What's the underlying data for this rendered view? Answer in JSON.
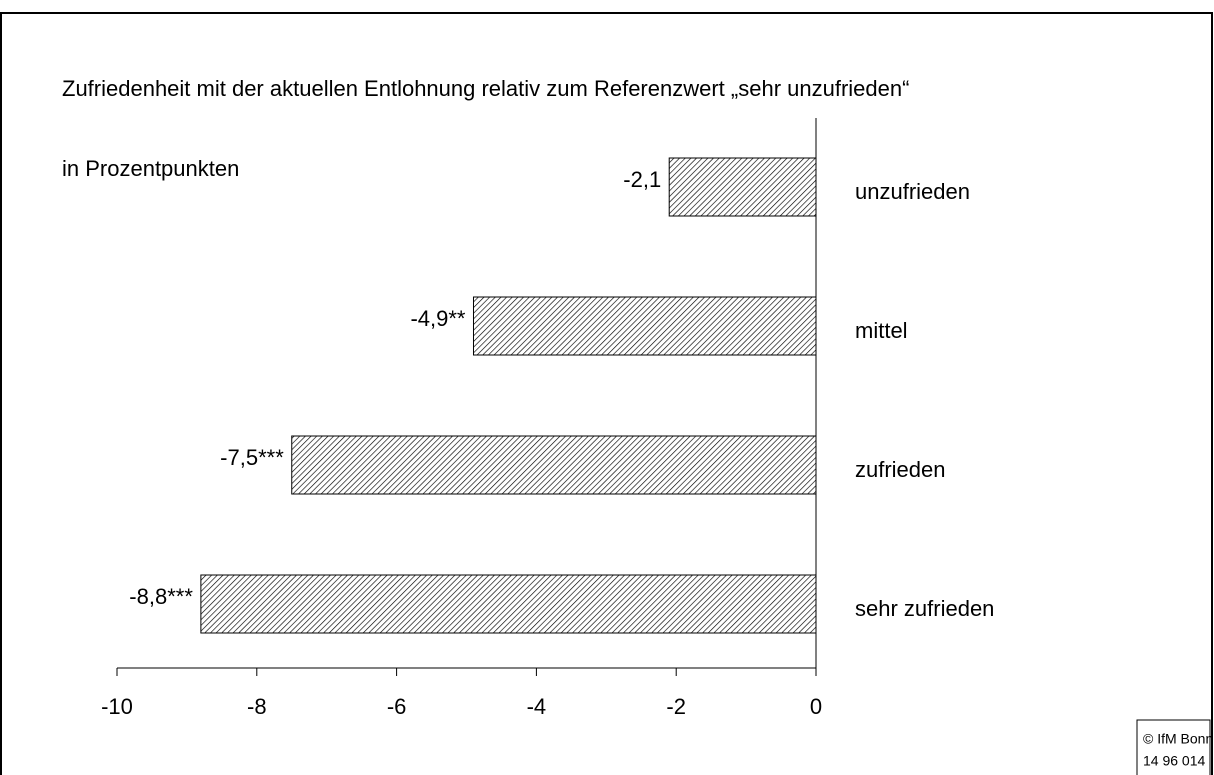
{
  "chart_data": {
    "type": "barh",
    "title": "Zufriedenheit mit der aktuellen Entlohnung relativ zum Referenzwert „sehr unzufrieden“",
    "subtitle": "in Prozentpunkten",
    "categories": [
      "unzufrieden",
      "mittel",
      "zufrieden",
      "sehr zufrieden"
    ],
    "values": [
      -2.1,
      -4.9,
      -7.5,
      -8.8
    ],
    "value_labels": [
      "-2,1",
      "-4,9**",
      "-7,5***",
      "-8,8***"
    ],
    "color": "#000000",
    "xlim": [
      -10,
      0
    ],
    "xticks": [
      -10,
      -8,
      -6,
      -4,
      -2,
      0
    ],
    "source": [
      "© IfM Bonn",
      "14 96 014"
    ]
  }
}
